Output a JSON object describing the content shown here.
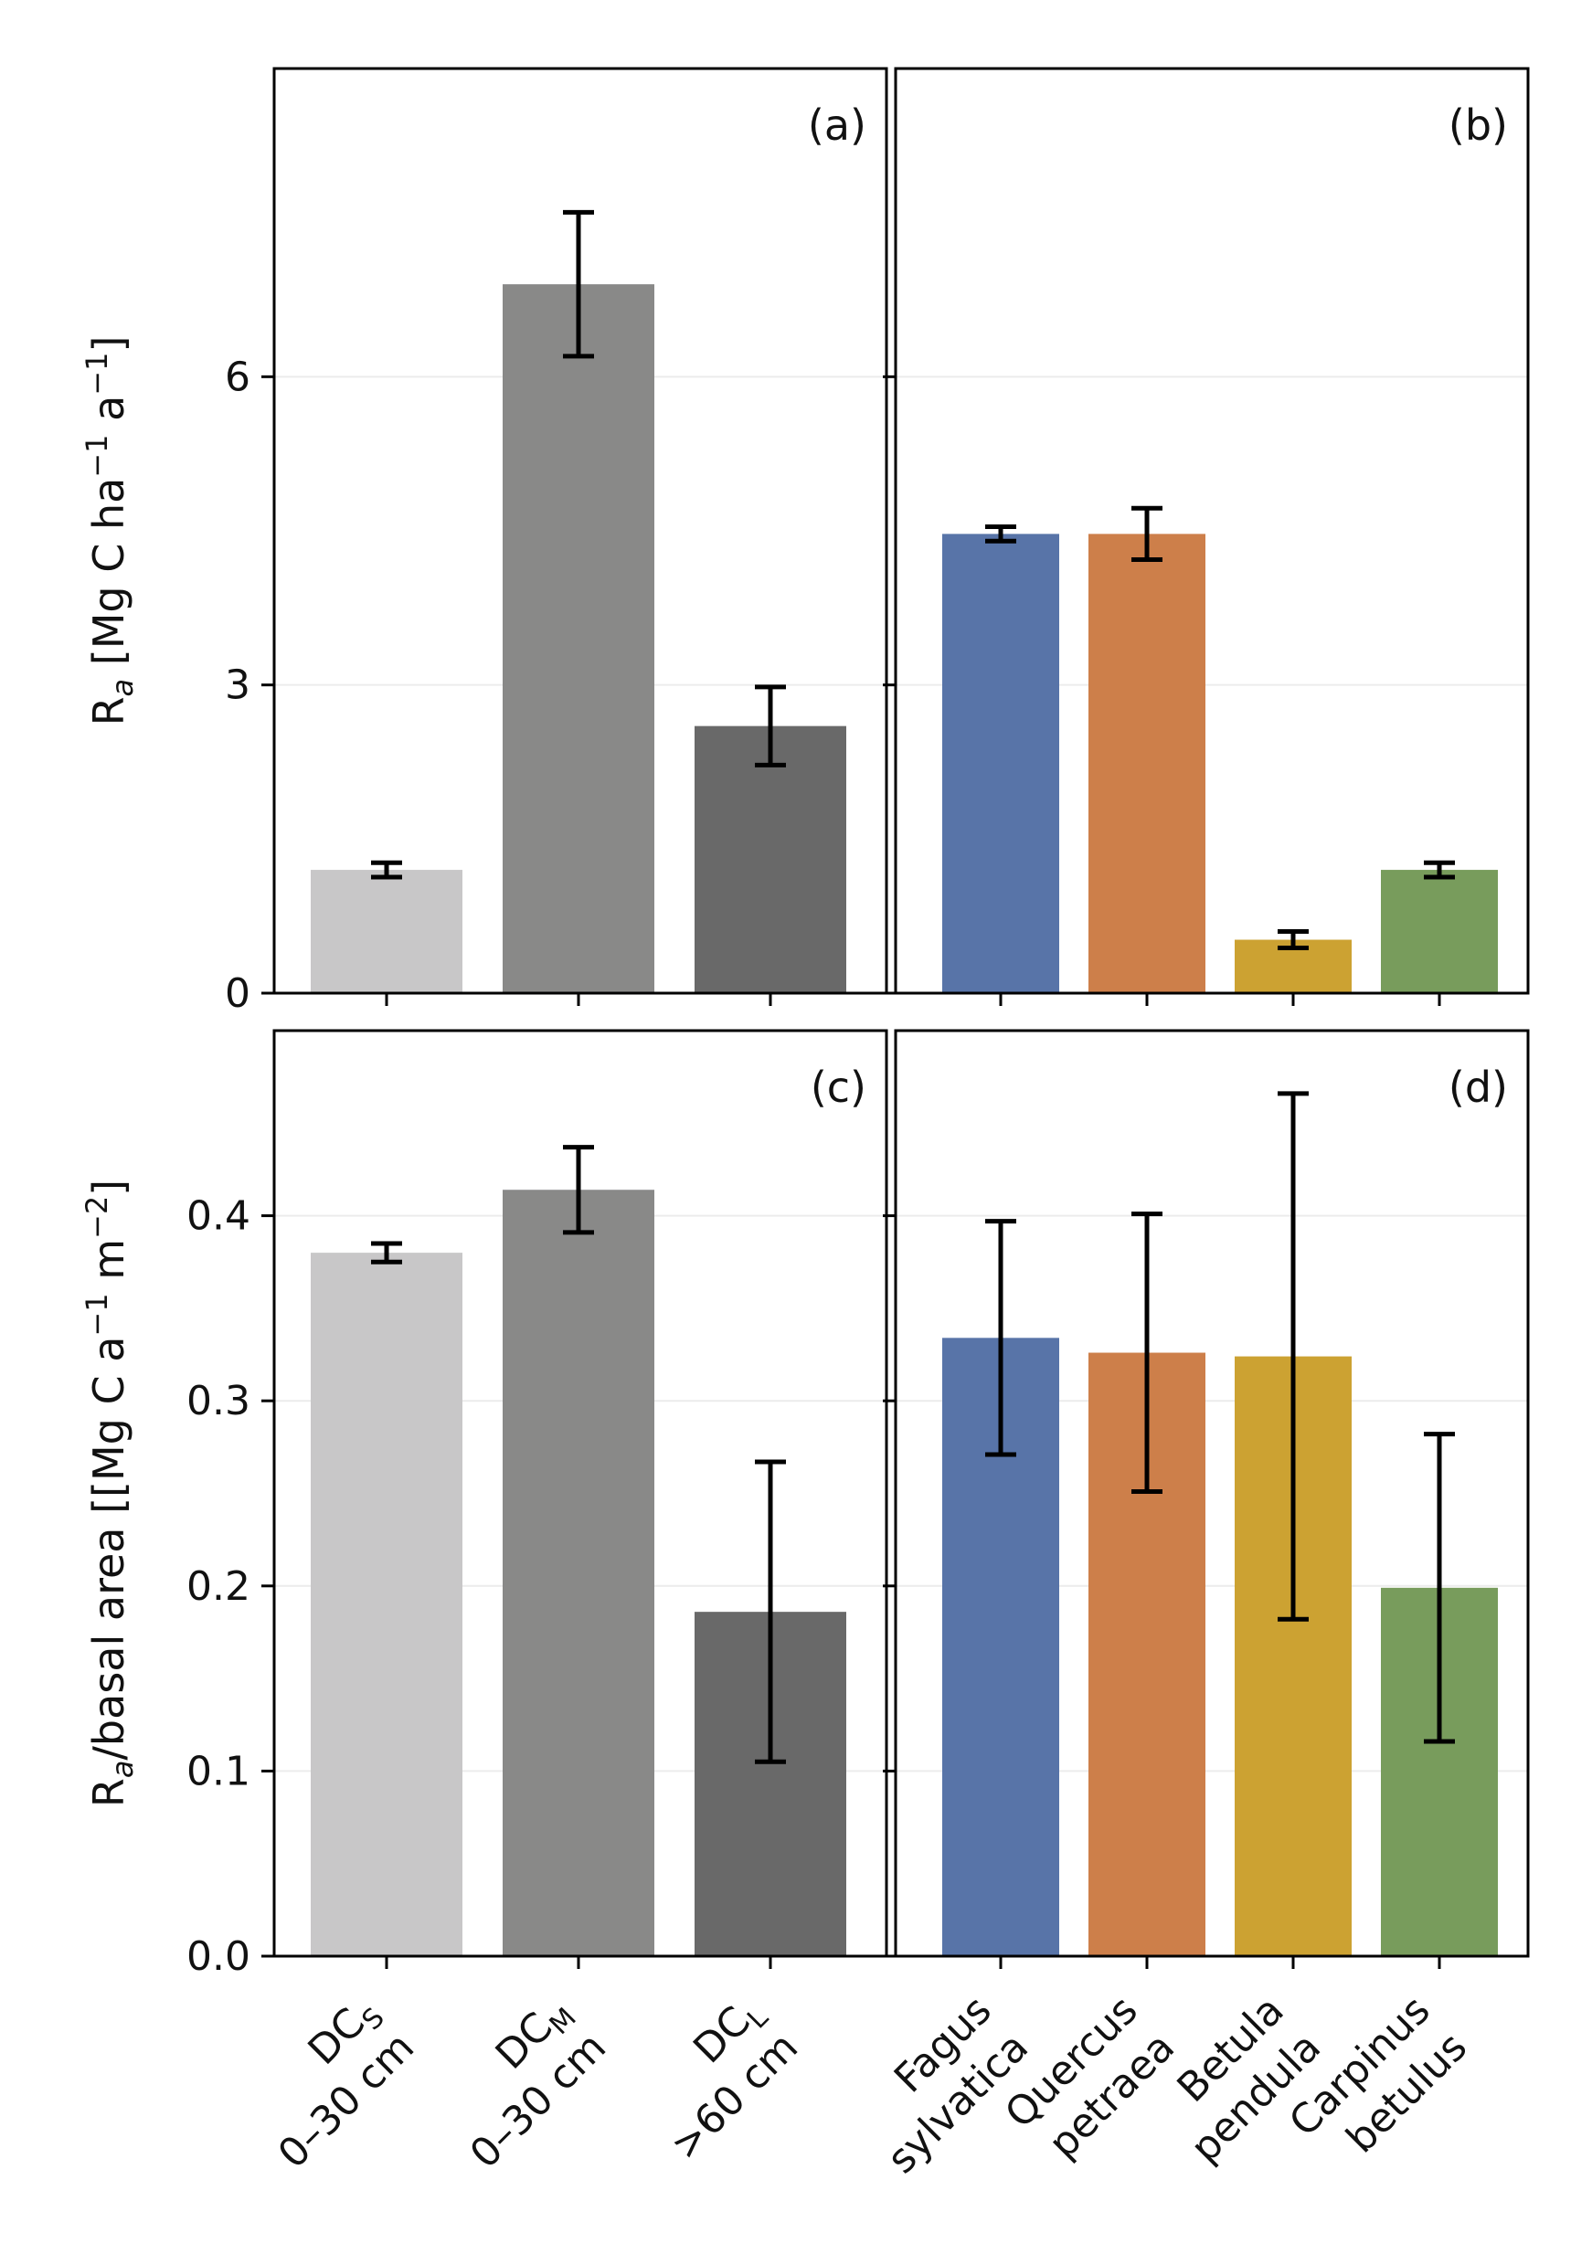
{
  "chart_data": [
    {
      "panel": "(a)",
      "type": "bar",
      "categories": [
        {
          "main": "DC",
          "sub": "S",
          "range": "0–30 cm"
        },
        {
          "main": "DC",
          "sub": "M",
          "range": "0–30 cm"
        },
        {
          "main": "DC",
          "sub": "L",
          "range": ">60 cm"
        }
      ],
      "values": [
        1.2,
        6.9,
        2.6
      ],
      "errors": [
        0.07,
        0.7,
        0.38
      ],
      "colors": [
        "#c8c7c8",
        "#898988",
        "#696969"
      ],
      "ylabel": {
        "main": "R",
        "sub": "a",
        "unit_prefix": " [Mg C ha",
        "unit_exp1": "−1",
        "unit_mid": " a",
        "unit_exp2": "−1",
        "unit_suffix": "]"
      },
      "ylim": [
        0,
        9.0
      ],
      "yticks": [
        "0",
        "3",
        "6"
      ],
      "ytick_values": [
        0,
        3,
        6
      ],
      "grid": "horizontal"
    },
    {
      "panel": "(b)",
      "type": "bar",
      "categories": [
        {
          "line1": "Fagus",
          "line2": "sylvatica"
        },
        {
          "line1": "Quercus",
          "line2": "petraea"
        },
        {
          "line1": "Betula",
          "line2": "pendula"
        },
        {
          "line1": "Carpinus",
          "line2": "betulus"
        }
      ],
      "values": [
        4.47,
        4.47,
        0.52,
        1.2
      ],
      "errors": [
        0.07,
        0.25,
        0.08,
        0.07
      ],
      "colors": [
        "#5874a8",
        "#cd7f4a",
        "#cca232",
        "#789c5c"
      ],
      "ylim": [
        0,
        9.0
      ],
      "ytick_values": [
        0,
        3,
        6
      ],
      "grid": "horizontal"
    },
    {
      "panel": "(c)",
      "type": "bar",
      "categories": [
        {
          "main": "DC",
          "sub": "S",
          "range": "0–30 cm"
        },
        {
          "main": "DC",
          "sub": "M",
          "range": "0–30 cm"
        },
        {
          "main": "DC",
          "sub": "L",
          "range": ">60 cm"
        }
      ],
      "values": [
        0.38,
        0.414,
        0.186
      ],
      "errors": [
        0.005,
        0.023,
        0.081
      ],
      "colors": [
        "#c8c7c8",
        "#898988",
        "#696969"
      ],
      "ylabel": {
        "main": "R",
        "sub": "a",
        "rest": "/basal area [[Mg C a",
        "exp1": "−1",
        "mid": " m",
        "exp2": "−2",
        "suffix": "]"
      },
      "ylim": [
        0,
        0.5
      ],
      "yticks": [
        "0.0",
        "0.1",
        "0.2",
        "0.3",
        "0.4"
      ],
      "ytick_values": [
        0.0,
        0.1,
        0.2,
        0.3,
        0.4
      ],
      "grid": "horizontal"
    },
    {
      "panel": "(d)",
      "type": "bar",
      "categories": [
        {
          "line1": "Fagus",
          "line2": "sylvatica"
        },
        {
          "line1": "Quercus",
          "line2": "petraea"
        },
        {
          "line1": "Betula",
          "line2": "pendula"
        },
        {
          "line1": "Carpinus",
          "line2": "betulus"
        }
      ],
      "values": [
        0.334,
        0.326,
        0.324,
        0.199
      ],
      "errors": [
        0.063,
        0.075,
        0.142,
        0.083
      ],
      "colors": [
        "#5874a8",
        "#cd7f4a",
        "#cca232",
        "#789c5c"
      ],
      "ylim": [
        0,
        0.5
      ],
      "ytick_values": [
        0.0,
        0.1,
        0.2,
        0.3,
        0.4
      ],
      "grid": "horizontal"
    }
  ]
}
